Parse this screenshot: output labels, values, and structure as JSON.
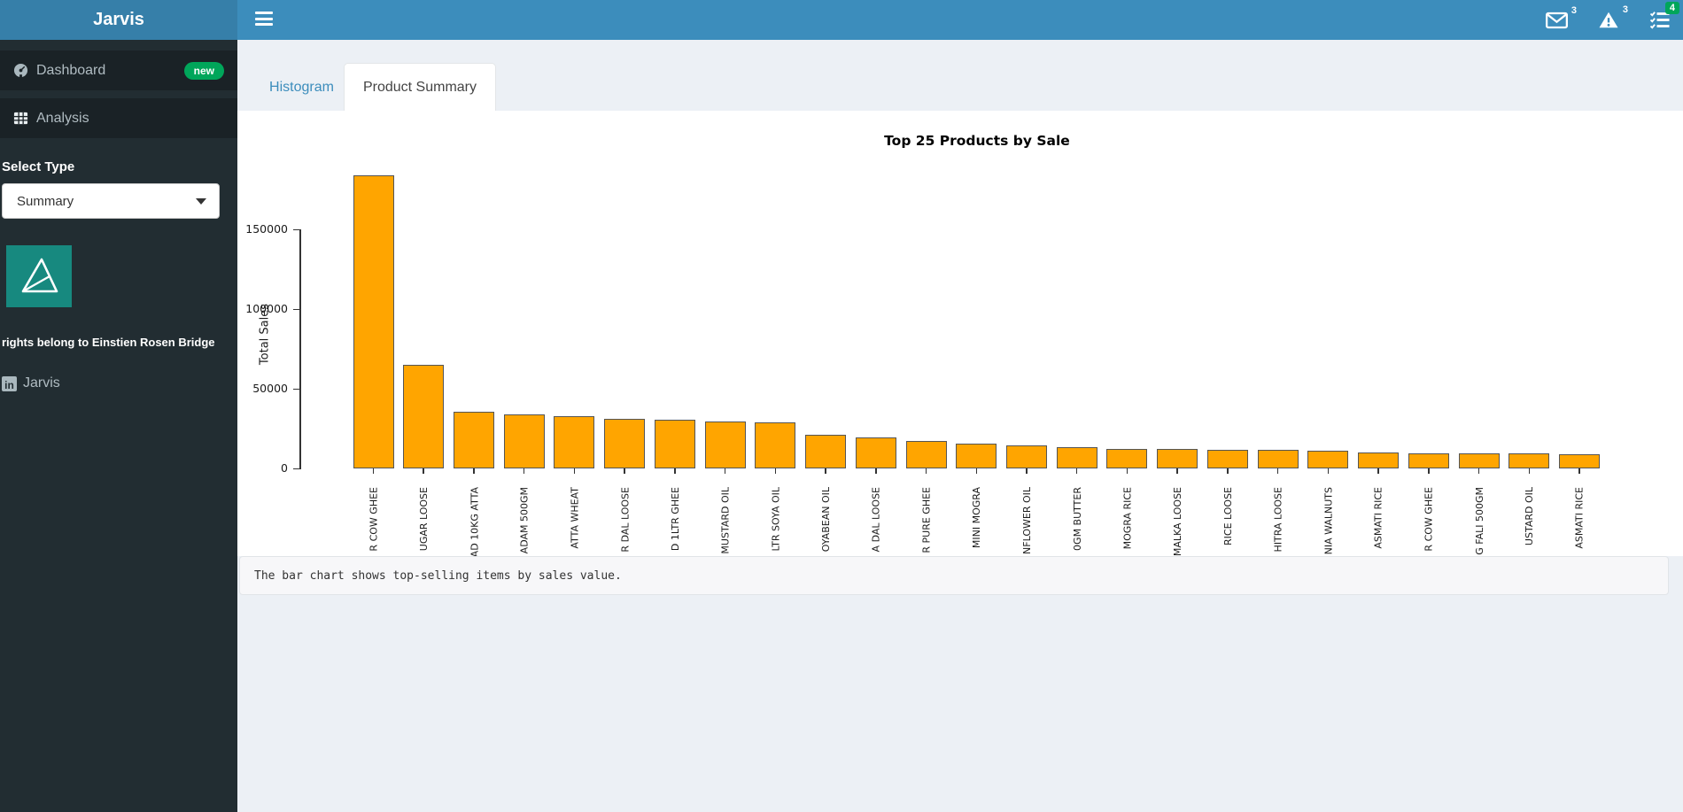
{
  "sidebar": {
    "brand": "Jarvis",
    "items": [
      {
        "label": "Dashboard",
        "badge": "new",
        "icon": "dashboard-icon"
      },
      {
        "label": "Analysis",
        "icon": "table-icon"
      }
    ],
    "select_type": {
      "label": "Select Type",
      "value": "Summary"
    },
    "rights_text": "rights belong to Einstien Rosen Bridge",
    "linkedin": {
      "label": "Jarvis",
      "icon_text": "in"
    }
  },
  "header": {
    "notifications": [
      {
        "icon": "envelope-icon",
        "count": "3"
      },
      {
        "icon": "warning-icon",
        "count": "3"
      },
      {
        "icon": "tasks-icon",
        "count": "4"
      }
    ]
  },
  "tabs": [
    {
      "label": "Histogram",
      "active": false
    },
    {
      "label": "Product Summary",
      "active": true
    }
  ],
  "chart_data": {
    "type": "bar",
    "title": "Top 25 Products by Sale",
    "xlabel": "",
    "ylabel": "Total Sales",
    "ylim": [
      0,
      190000
    ],
    "yticks": [
      0,
      50000,
      100000,
      150000
    ],
    "legend": "none",
    "grid": false,
    "bar_color": "#FFA500",
    "bar_edge_color": "#555555",
    "categories": [
      "R COW GHEE",
      "UGAR LOOSE",
      "AD 10KG ATTA",
      "ADAM 500GM",
      "ATTA WHEAT",
      "R DAL LOOSE",
      "D 1LTR GHEE",
      "MUSTARD OIL",
      "LTR SOYA OIL",
      "OYABEAN OIL",
      "A DAL LOOSE",
      "R PURE GHEE",
      "MINI MOGRA",
      "NFLOWER OIL",
      "0GM BUTTER",
      "MOGRA RICE",
      "MALKA LOOSE",
      "RICE LOOSE",
      "HITRA LOOSE",
      "NIA WALNUTS",
      "ASMATI RICE",
      "R COW GHEE",
      "G FALI 500GM",
      "USTARD OIL",
      "ASMATI RICE"
    ],
    "values": [
      184000,
      65000,
      35500,
      34000,
      33000,
      31000,
      30500,
      29500,
      29000,
      21000,
      19200,
      17500,
      15300,
      14200,
      13600,
      12100,
      12000,
      11800,
      11400,
      10900,
      9900,
      9700,
      9400,
      9200,
      9000
    ]
  },
  "footnote": "The bar chart shows top-selling items by sales value.",
  "colors": {
    "navbar": "#3c8dbc",
    "brand_bg": "#367fa9",
    "sidebar_bg": "#222d32",
    "menu_item_bg": "#1a2226",
    "badge_green": "#00a65a",
    "logo_teal": "#17897f",
    "content_bg": "#ecf0f5",
    "panel_bg": "#ffffff",
    "strip_bg": "#f7f7f9"
  }
}
